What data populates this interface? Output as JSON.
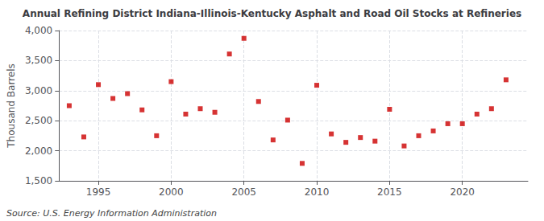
{
  "chart_data": {
    "type": "scatter",
    "title": "Annual Refining District Indiana-Illinois-Kentucky Asphalt and Road Oil Stocks at Refineries",
    "ylabel": "Thousand Barrels",
    "source": "Source: U.S. Energy Information Administration",
    "x": [
      1993,
      1994,
      1995,
      1996,
      1997,
      1998,
      1999,
      2000,
      2001,
      2002,
      2003,
      2004,
      2005,
      2006,
      2007,
      2008,
      2009,
      2010,
      2011,
      2012,
      2013,
      2014,
      2015,
      2016,
      2017,
      2018,
      2019,
      2020,
      2021,
      2022,
      2023
    ],
    "values": [
      2750,
      2230,
      3100,
      2870,
      2950,
      2680,
      2250,
      3150,
      2610,
      2700,
      2640,
      3610,
      3870,
      2820,
      2180,
      2510,
      1790,
      3090,
      2280,
      2140,
      2220,
      2160,
      2690,
      2080,
      2250,
      2330,
      2450,
      2450,
      2610,
      2700,
      3180
    ],
    "color": "#cc0000",
    "marker": "square",
    "xlim": [
      1992.3,
      2024.5
    ],
    "xticks": [
      1995,
      2000,
      2005,
      2010,
      2015,
      2020
    ],
    "ylim": [
      1500,
      4000
    ],
    "yticks": [
      {
        "value": 1500,
        "label": "1,500"
      },
      {
        "value": 2000,
        "label": "2,000"
      },
      {
        "value": 2500,
        "label": "2,500"
      },
      {
        "value": 3000,
        "label": "3,000"
      },
      {
        "value": 3500,
        "label": "3,500"
      },
      {
        "value": 4000,
        "label": "4,000"
      }
    ],
    "grid": true
  }
}
